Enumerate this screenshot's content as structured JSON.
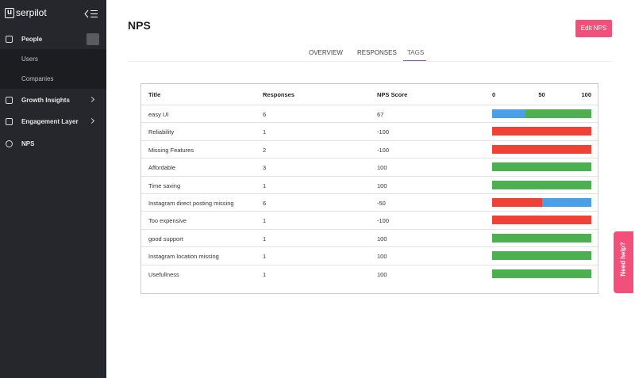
{
  "sidebar": {
    "logo_mark": "u",
    "logo_text": "serpilot",
    "items": [
      "People",
      "Users",
      "Companies",
      "Growth Insights",
      "Engagement Layer",
      "NPS"
    ]
  },
  "header": {
    "title": "NPS",
    "button": "Edit NPS"
  },
  "tabs": {
    "items": [
      "OVERVIEW",
      "RESPONSES",
      "TAGS"
    ],
    "active": 2
  },
  "table": {
    "columns": [
      "Title",
      "Responses",
      "NPS Score"
    ],
    "scale_ticks": [
      0,
      50,
      100
    ],
    "segment_colors": [
      "#ef4136",
      "#4a9fe8",
      "#4caf50"
    ],
    "rows": [
      {
        "title": "easy UI",
        "responses": 6,
        "score": 67,
        "segments": [
          0,
          33.3,
          66.7
        ]
      },
      {
        "title": "Reliability",
        "responses": 1,
        "score": -100,
        "segments": [
          100,
          0,
          0
        ]
      },
      {
        "title": "Missing Features",
        "responses": 2,
        "score": -100,
        "segments": [
          100,
          0,
          0
        ]
      },
      {
        "title": "Affordable",
        "responses": 3,
        "score": 100,
        "segments": [
          0,
          0,
          100
        ]
      },
      {
        "title": "Time saving",
        "responses": 1,
        "score": 100,
        "segments": [
          0,
          0,
          100
        ]
      },
      {
        "title": "Instagram direct posting missing",
        "responses": 6,
        "score": -50,
        "segments": [
          50,
          50,
          0
        ]
      },
      {
        "title": "Too expensive",
        "responses": 1,
        "score": -100,
        "segments": [
          100,
          0,
          0
        ]
      },
      {
        "title": "good support",
        "responses": 1,
        "score": 100,
        "segments": [
          0,
          0,
          100
        ]
      },
      {
        "title": "Instagram location missing",
        "responses": 1,
        "score": 100,
        "segments": [
          0,
          0,
          100
        ]
      },
      {
        "title": "Usefullness",
        "responses": 1,
        "score": 100,
        "segments": [
          0,
          0,
          100
        ]
      }
    ]
  },
  "help": "Need help?"
}
